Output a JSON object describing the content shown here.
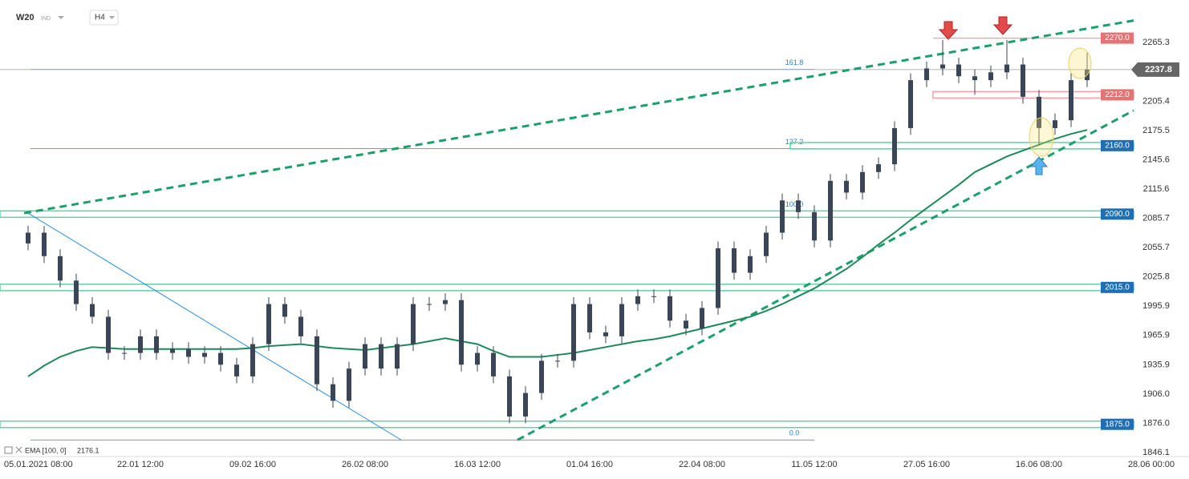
{
  "header": {
    "symbol": "W20",
    "market": "IND",
    "timeframe": "H4"
  },
  "chart_data": {
    "type": "candlestick",
    "categories": [
      "05.01.2021 08:00",
      null,
      null,
      null,
      null,
      null,
      null,
      "22.01 12:00",
      null,
      null,
      null,
      null,
      null,
      null,
      "09.02 16:00",
      null,
      null,
      null,
      null,
      null,
      null,
      "26.02 08:00",
      null,
      null,
      null,
      null,
      null,
      null,
      "16.03 12:00",
      null,
      null,
      null,
      null,
      null,
      null,
      "01.04 16:00",
      null,
      null,
      null,
      null,
      null,
      null,
      "22.04 08:00",
      null,
      null,
      null,
      null,
      null,
      null,
      "11.05 12:00",
      null,
      null,
      null,
      null,
      null,
      null,
      "27.05 16:00",
      null,
      null,
      null,
      null,
      null,
      null,
      "16.06 08:00",
      null,
      null,
      null,
      null,
      null,
      null,
      "28.06 00:00"
    ],
    "open": [
      2060,
      2071,
      2047,
      2022,
      1998,
      1985,
      1948,
      1948,
      1965,
      1948,
      1952,
      1944,
      1948,
      1936,
      1924,
      1957,
      1998,
      1985,
      1965,
      1916,
      1899,
      1932,
      1957,
      1932,
      1957,
      1998,
      1998,
      2002,
      1936,
      1948,
      1924,
      1883,
      1907,
      1940,
      1940,
      1998,
      1969,
      1965,
      1998,
      2006,
      2006,
      1981,
      1973,
      1994,
      2055,
      2030,
      2047,
      2071,
      2104,
      2092,
      2063,
      2124,
      2112,
      2133,
      2141,
      2178,
      2227,
      2239,
      2243,
      2231,
      2227,
      2235,
      2243,
      2210,
      2178,
      2186,
      2227,
      null,
      null,
      null,
      null
    ],
    "high": [
      2078,
      2078,
      2054,
      2029,
      2005,
      1992,
      1955,
      1972,
      1972,
      1959,
      1959,
      1955,
      1955,
      1943,
      1964,
      2005,
      2005,
      1992,
      1972,
      1923,
      1939,
      1964,
      1964,
      1964,
      2005,
      2005,
      2009,
      2009,
      1955,
      1955,
      1931,
      1914,
      1947,
      1947,
      2005,
      2005,
      1976,
      2005,
      2013,
      2013,
      2013,
      1988,
      2001,
      2062,
      2062,
      2054,
      2078,
      2111,
      2111,
      2099,
      2131,
      2131,
      2140,
      2148,
      2185,
      2234,
      2246,
      2268,
      2250,
      2238,
      2242,
      2268,
      2250,
      2217,
      2193,
      2234,
      2255,
      null,
      null,
      null,
      null
    ],
    "low": [
      2053,
      2040,
      2015,
      1991,
      1978,
      1941,
      1941,
      1941,
      1941,
      1941,
      1937,
      1937,
      1929,
      1917,
      1917,
      1950,
      1978,
      1958,
      1909,
      1892,
      1892,
      1925,
      1925,
      1925,
      1950,
      1991,
      1991,
      1929,
      1929,
      1917,
      1876,
      1876,
      1900,
      1933,
      1933,
      1962,
      1958,
      1958,
      1991,
      1999,
      1974,
      1966,
      1966,
      1987,
      2023,
      2023,
      2040,
      2064,
      2085,
      2056,
      2056,
      2105,
      2105,
      2126,
      2134,
      2171,
      2220,
      2232,
      2224,
      2212,
      2220,
      2228,
      2203,
      2160,
      2171,
      2179,
      2220,
      null,
      null,
      null,
      null
    ],
    "close": [
      2071,
      2047,
      2022,
      1998,
      1985,
      1948,
      1948,
      1965,
      1948,
      1952,
      1944,
      1948,
      1936,
      1924,
      1957,
      1998,
      1985,
      1965,
      1916,
      1899,
      1932,
      1957,
      1932,
      1957,
      1998,
      1998,
      2002,
      1936,
      1948,
      1924,
      1883,
      1907,
      1940,
      1940,
      1998,
      1969,
      1965,
      1998,
      2006,
      2006,
      1981,
      1973,
      1994,
      2055,
      2030,
      2047,
      2071,
      2104,
      2092,
      2063,
      2124,
      2112,
      2133,
      2141,
      2178,
      2227,
      2239,
      2243,
      2231,
      2227,
      2235,
      2243,
      2210,
      2178,
      2186,
      2227,
      2237.8,
      null,
      null,
      null,
      null
    ],
    "candle_color": "#3a4656",
    "series": [
      {
        "name": "EMA [100, 0]",
        "color": "#1e8a5a",
        "values": [
          1924,
          1935,
          1944,
          1950,
          1954,
          1953,
          1952,
          1952,
          1952,
          1952,
          1952,
          1952,
          1952,
          1952,
          1953,
          1955,
          1956,
          1957,
          1955,
          1953,
          1952,
          1951,
          1953,
          1955,
          1957,
          1960,
          1963,
          1960,
          1957,
          1950,
          1944,
          1944,
          1944,
          1946,
          1948,
          1951,
          1954,
          1957,
          1960,
          1962,
          1965,
          1969,
          1973,
          1977,
          1981,
          1985,
          1991,
          1998,
          2006,
          2014,
          2024,
          2034,
          2046,
          2059,
          2071,
          2084,
          2096,
          2108,
          2120,
          2133,
          2141,
          2149,
          2155,
          2161,
          2167,
          2172,
          2176.1,
          null,
          null,
          null,
          null
        ]
      }
    ],
    "ylim": [
      1842,
      2309
    ],
    "yticks": [
      2265.3,
      2205.4,
      2175.5,
      2145.6,
      2115.6,
      2085.7,
      2055.7,
      2025.8,
      1995.9,
      1965.9,
      1935.9,
      {
        "value": 1906.0,
        "label": "1906.0"
      },
      {
        "value": 1876.0,
        "label": "1876.0"
      },
      1846.1
    ],
    "last_price": 2237.8,
    "levels": [
      {
        "value": 2270,
        "label": "2270.0",
        "color": "#e57373",
        "line": "#f0a0a0",
        "zone": false
      },
      {
        "value": 2212,
        "label": "2212.0",
        "color": "#e57373",
        "line": "#f0a0a0",
        "zone": true
      },
      {
        "value": 2160,
        "label": "2160.0",
        "color": "#1f6fb5",
        "line": "#5fd3a6",
        "zone": true
      },
      {
        "value": 2090,
        "label": "2090.0",
        "color": "#1f6fb5",
        "line": "#5fd3a6",
        "zone": true
      },
      {
        "value": 2015,
        "label": "2015.0",
        "color": "#1f6fb5",
        "line": "#5fd3a6",
        "zone": true
      },
      {
        "value": 1875,
        "label": "1875.0",
        "color": "#1f6fb5",
        "line": "#5fd3a6",
        "zone": true
      }
    ],
    "fibonacci": [
      {
        "ratio": 161.8,
        "price": 2238
      },
      {
        "ratio": 127.2,
        "price": 2157
      },
      {
        "ratio": 100.0,
        "label": "100.0",
        "price": 2093
      },
      {
        "ratio": 0.0,
        "label": "0.0",
        "price": 1859
      }
    ],
    "trendlines": [
      {
        "points": [
          [
            -0.25,
            2091
          ],
          [
            68.9,
            2288
          ]
        ],
        "color": "#1aa06b",
        "dashed": true
      },
      {
        "points": [
          [
            30.5,
            1859
          ],
          [
            68.9,
            2196
          ]
        ],
        "color": "#1aa06b",
        "dashed": true
      },
      {
        "points": [
          [
            0,
            2091
          ],
          [
            23.25,
            1859
          ]
        ],
        "color": "#2a8ee0",
        "dashed": false
      }
    ]
  }
}
